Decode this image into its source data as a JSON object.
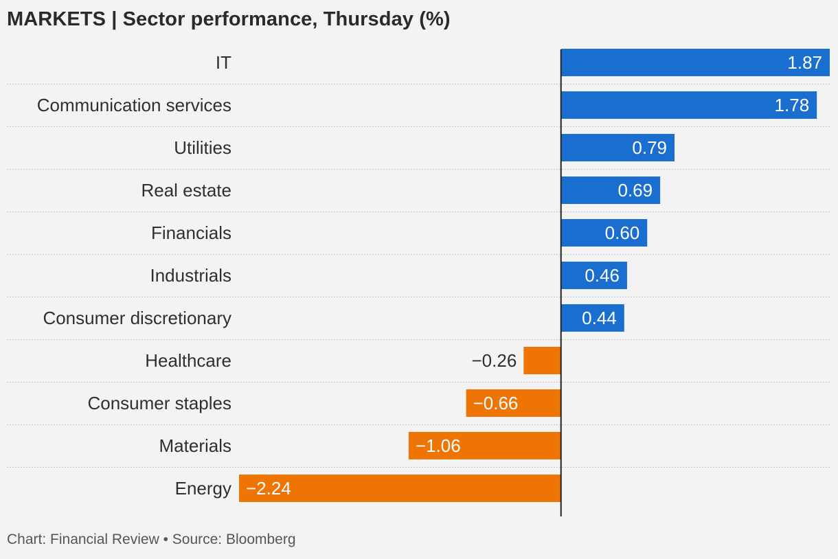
{
  "title": "MARKETS | Sector performance, Thursday (%)",
  "footer": "Chart: Financial Review • Source: Bloomberg",
  "colors": {
    "positive": "#1a6ed0",
    "negative": "#ee7404",
    "background": "#f3f3f3",
    "axis": "#222222",
    "grid": "#c7c7c7"
  },
  "chart_data": {
    "type": "bar",
    "orientation": "horizontal",
    "categories": [
      "IT",
      "Communication services",
      "Utilities",
      "Real estate",
      "Financials",
      "Industrials",
      "Consumer discretionary",
      "Healthcare",
      "Consumer staples",
      "Materials",
      "Energy"
    ],
    "values": [
      1.87,
      1.78,
      0.79,
      0.69,
      0.6,
      0.46,
      0.44,
      -0.26,
      -0.66,
      -1.06,
      -2.24
    ],
    "value_labels": [
      "1.87",
      "1.78",
      "0.79",
      "0.69",
      "0.60",
      "0.46",
      "0.44",
      "−0.26",
      "−0.66",
      "−1.06",
      "−2.24"
    ],
    "xlim": [
      -2.24,
      1.87
    ],
    "title": "MARKETS | Sector performance, Thursday (%)",
    "xlabel": "",
    "ylabel": "",
    "grid": true,
    "legend": "none"
  }
}
